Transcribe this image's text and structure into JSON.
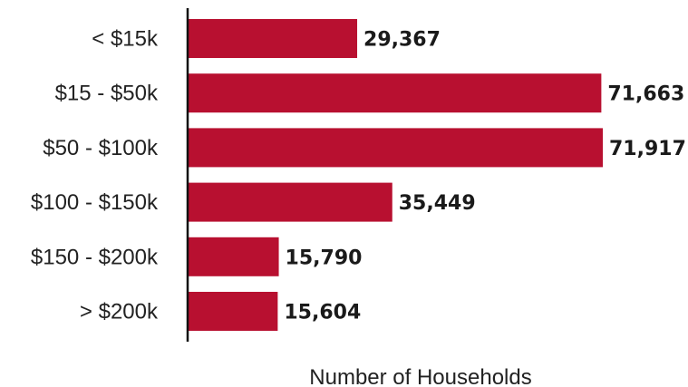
{
  "chart_data": {
    "type": "bar",
    "orientation": "horizontal",
    "categories": [
      "< $15k",
      "$15 - $50k",
      "$50 - $100k",
      "$100 - $150k",
      "$150 - $200k",
      "> $200k"
    ],
    "values": [
      29367,
      71663,
      71917,
      35449,
      15790,
      15604
    ],
    "value_labels": [
      "29,367",
      "71,663",
      "71,917",
      "35,449",
      "15,790",
      "15,604"
    ],
    "title": "",
    "xlabel": "Number of Households",
    "ylabel": "",
    "xlim": [
      0,
      71917
    ],
    "grid": false,
    "legend": "none",
    "bar_color": "#b81030",
    "axis_color": "#111111"
  }
}
